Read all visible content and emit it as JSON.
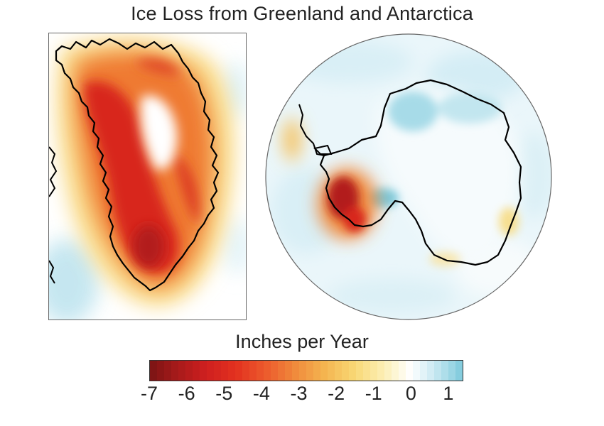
{
  "title": "Ice Loss from Greenland and Antarctica",
  "maps": {
    "greenland": {
      "panel": "rectangular",
      "colors": {
        "land_outline": "#000000",
        "frame": "#666666"
      }
    },
    "antarctica": {
      "panel": "circular",
      "colors": {
        "land_outline": "#000000",
        "frame": "#666666"
      }
    }
  },
  "colorbar": {
    "label": "Inches per Year",
    "min": -7,
    "max": 1.4,
    "ticks": [
      "-7",
      "-6",
      "-5",
      "-4",
      "-3",
      "-2",
      "-1",
      "0",
      "1"
    ],
    "tick_values": [
      -7,
      -6,
      -5,
      -4,
      -3,
      -2,
      -1,
      0,
      1
    ],
    "colors": [
      "#7a1414",
      "#a51a1a",
      "#cf1f1f",
      "#e2311f",
      "#ec5a2c",
      "#f08a3c",
      "#f4b550",
      "#f8d875",
      "#fcefb6",
      "#ffffff",
      "#d6eef5",
      "#a7dbe8",
      "#7cc9db"
    ],
    "stops": [
      -7,
      -6.3,
      -5.5,
      -4.7,
      -3.9,
      -3.1,
      -2.3,
      -1.5,
      -0.7,
      0,
      0.5,
      1,
      1.4
    ]
  }
}
